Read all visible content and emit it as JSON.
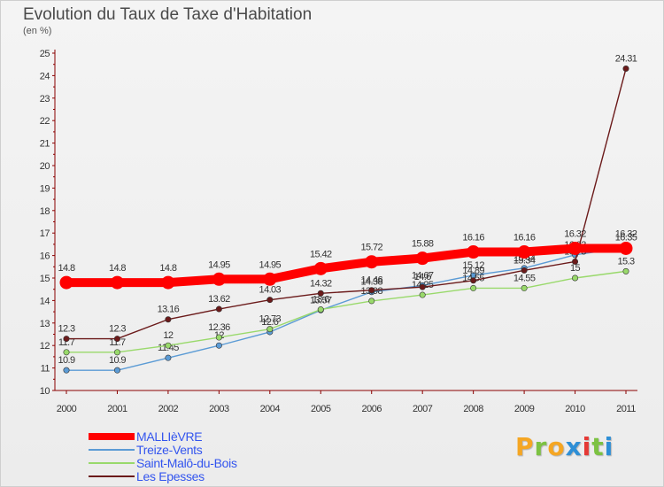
{
  "title": "Evolution du Taux de Taxe d'Habitation",
  "subtitle": "(en %)",
  "logo": {
    "text": "Proxiti",
    "letter_colors": [
      "#f5a623",
      "#7cc242",
      "#f5a623",
      "#2e8fd6",
      "#e53935",
      "#7cc242",
      "#2e8fd6"
    ]
  },
  "chart_data": {
    "type": "line",
    "title": "Evolution du Taux de Taxe d'Habitation",
    "ylabel": "(en %)",
    "xlabel": "",
    "x": [
      "2000",
      "2001",
      "2002",
      "2003",
      "2004",
      "2005",
      "2006",
      "2007",
      "2008",
      "2009",
      "2010",
      "2011"
    ],
    "ylim": [
      10,
      25
    ],
    "yticks": [
      "10",
      "11",
      "12",
      "13",
      "14",
      "15",
      "16",
      "17",
      "18",
      "19",
      "20",
      "21",
      "22",
      "23",
      "24",
      "25"
    ],
    "grid": false,
    "legend_position": "bottom-left",
    "series": [
      {
        "name": "MALLIèVRE",
        "color": "#ff0000",
        "values": [
          14.8,
          14.8,
          14.8,
          14.95,
          14.95,
          15.42,
          15.72,
          15.88,
          16.16,
          16.16,
          16.32,
          16.32
        ],
        "labels": [
          "14.8",
          "14.8",
          "14.8",
          "14.95",
          "14.95",
          "15.42",
          "15.72",
          "15.88",
          "16.16",
          "16.16",
          "16.32",
          "16.32"
        ]
      },
      {
        "name": "Treize-Vents",
        "color": "#5b9bd5",
        "values": [
          10.9,
          10.9,
          11.45,
          12,
          12.6,
          13.57,
          14.38,
          14.67,
          15.12,
          15.44,
          16.03,
          16.35
        ],
        "labels": [
          "10.9",
          "10.9",
          "11.45",
          "12",
          "12.6",
          "13.57",
          "14.38",
          "14.67",
          "15.12",
          "15.44",
          "16.03",
          "16.35"
        ]
      },
      {
        "name": "Saint-Malô-du-Bois",
        "color": "#99d96b",
        "values": [
          11.7,
          11.7,
          12,
          12.36,
          12.73,
          13.6,
          13.98,
          14.25,
          14.55,
          14.55,
          15,
          15.3
        ],
        "labels": [
          "11.7",
          "11.7",
          "12",
          "12.36",
          "12.73",
          "13.6",
          "13.98",
          "14.25",
          "14.55",
          "14.55",
          "15",
          "15.3"
        ]
      },
      {
        "name": "Les Epesses",
        "color": "#6b1a1a",
        "values": [
          12.3,
          12.3,
          13.16,
          13.62,
          14.03,
          14.32,
          14.46,
          14.6,
          14.89,
          15.34,
          15.73,
          24.31
        ],
        "labels": [
          "12.3",
          "12.3",
          "13.16",
          "13.62",
          "14.03",
          "14.32",
          "14.46",
          "14.6",
          "14.89",
          "15.34",
          "15.73",
          "24.31"
        ]
      }
    ]
  }
}
